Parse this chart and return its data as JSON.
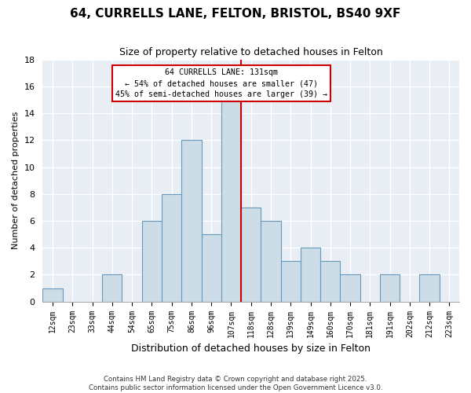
{
  "title": "64, CURRELLS LANE, FELTON, BRISTOL, BS40 9XF",
  "subtitle": "Size of property relative to detached houses in Felton",
  "xlabel": "Distribution of detached houses by size in Felton",
  "ylabel": "Number of detached properties",
  "bin_labels": [
    "12sqm",
    "23sqm",
    "33sqm",
    "44sqm",
    "54sqm",
    "65sqm",
    "75sqm",
    "86sqm",
    "96sqm",
    "107sqm",
    "118sqm",
    "128sqm",
    "139sqm",
    "149sqm",
    "160sqm",
    "170sqm",
    "181sqm",
    "191sqm",
    "202sqm",
    "212sqm",
    "223sqm"
  ],
  "bar_values": [
    1,
    0,
    0,
    2,
    0,
    6,
    8,
    12,
    5,
    15,
    7,
    6,
    3,
    4,
    3,
    2,
    0,
    2,
    0,
    2,
    0
  ],
  "bar_color": "#ccdde8",
  "bar_edge_color": "#6699bb",
  "highlight_bin_index": 9,
  "highlight_color": "#cc0000",
  "ylim": [
    0,
    18
  ],
  "yticks": [
    0,
    2,
    4,
    6,
    8,
    10,
    12,
    14,
    16,
    18
  ],
  "annotation_title": "64 CURRELLS LANE: 131sqm",
  "annotation_line1": "← 54% of detached houses are smaller (47)",
  "annotation_line2": "45% of semi-detached houses are larger (39) →",
  "footnote1": "Contains HM Land Registry data © Crown copyright and database right 2025.",
  "footnote2": "Contains public sector information licensed under the Open Government Licence v3.0.",
  "background_color": "#e8eef4"
}
